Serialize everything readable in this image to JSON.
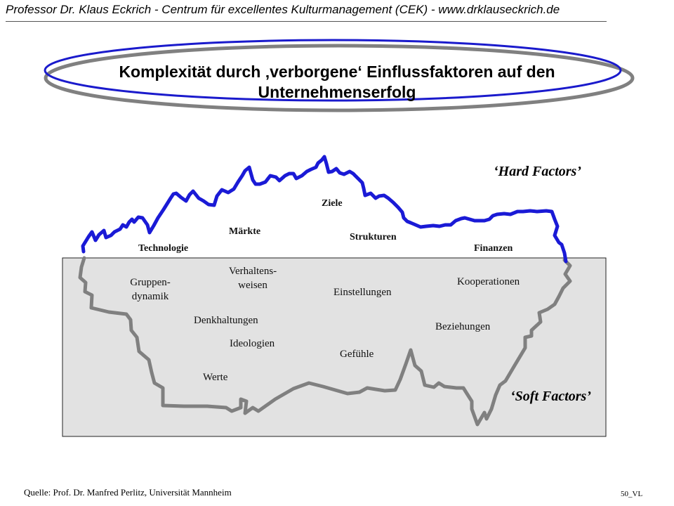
{
  "header": {
    "text": "Professor Dr. Klaus Eckrich - Centrum für excellentes Kulturmanagement (CEK) - www.drklauseckrich.de"
  },
  "title": {
    "line1": "Komplexität durch ‚verborgene‘ Einflussfaktoren auf den",
    "line2": "Unternehmenserfolg"
  },
  "colors": {
    "above_water_outline": "#1a1ad6",
    "below_water_outline": "#808080",
    "water_fill": "#e2e2e2",
    "ellipse_blue": "#1a1acc",
    "ellipse_grey": "#808080"
  },
  "hard_factors": {
    "label": "‘Hard Factors’",
    "items": [
      "Ziele",
      "Märkte",
      "Strukturen",
      "Technologie",
      "Finanzen"
    ]
  },
  "soft_factors": {
    "label": "‘Soft Factors’",
    "items": [
      "Gruppen-",
      "dynamik",
      "Verhaltens-",
      "weisen",
      "Kooperationen",
      "Einstellungen",
      "Denkhaltungen",
      "Beziehungen",
      "Ideologien",
      "Gefühle",
      "Werte"
    ]
  },
  "footer": {
    "source": "Quelle: Prof. Dr. Manfred Perlitz, Universität Mannheim",
    "page_number": "50",
    "page_code": "VL"
  }
}
